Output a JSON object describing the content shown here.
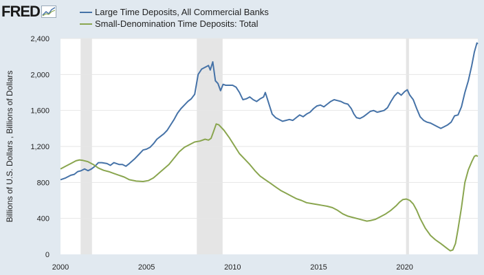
{
  "header": {
    "logo_text": "FRED"
  },
  "colors": {
    "background": "#e1e9f0",
    "plot_background": "#ffffff",
    "gridline": "#e6e6e6",
    "recession": "#e5e5e5",
    "series_large": "#4572a7",
    "series_small": "#89a54e"
  },
  "chart_data": {
    "type": "line",
    "title": "",
    "xlabel": "",
    "ylabel": "Billions of U.S. Dollars , Billions of Dollars",
    "xlim": [
      2000,
      2024.25
    ],
    "ylim": [
      0,
      2400
    ],
    "x_ticks": [
      2000,
      2005,
      2010,
      2015,
      2020
    ],
    "y_ticks": [
      0,
      400,
      800,
      1200,
      1600,
      2000,
      2400
    ],
    "y_tick_labels": [
      "0",
      "400",
      "800",
      "1,200",
      "1,600",
      "2,000",
      "2,400"
    ],
    "grid": true,
    "legend_position": "top-left",
    "recessions": [
      [
        2001.17,
        2001.83
      ],
      [
        2007.92,
        2009.42
      ],
      [
        2020.08,
        2020.25
      ]
    ],
    "series": [
      {
        "name": "Large Time Deposits, All Commercial Banks",
        "color": "#4572a7",
        "points": [
          [
            2000.0,
            830
          ],
          [
            2000.3,
            850
          ],
          [
            2000.6,
            880
          ],
          [
            2000.8,
            890
          ],
          [
            2001.0,
            920
          ],
          [
            2001.2,
            930
          ],
          [
            2001.4,
            950
          ],
          [
            2001.6,
            930
          ],
          [
            2001.8,
            950
          ],
          [
            2002.0,
            980
          ],
          [
            2002.2,
            1020
          ],
          [
            2002.4,
            1020
          ],
          [
            2002.7,
            1010
          ],
          [
            2002.9,
            990
          ],
          [
            2003.1,
            1020
          ],
          [
            2003.4,
            1000
          ],
          [
            2003.6,
            1000
          ],
          [
            2003.8,
            980
          ],
          [
            2004.0,
            1010
          ],
          [
            2004.3,
            1060
          ],
          [
            2004.6,
            1120
          ],
          [
            2004.8,
            1160
          ],
          [
            2005.0,
            1170
          ],
          [
            2005.2,
            1190
          ],
          [
            2005.4,
            1230
          ],
          [
            2005.6,
            1280
          ],
          [
            2005.8,
            1310
          ],
          [
            2006.0,
            1340
          ],
          [
            2006.2,
            1380
          ],
          [
            2006.4,
            1440
          ],
          [
            2006.6,
            1500
          ],
          [
            2006.8,
            1570
          ],
          [
            2007.0,
            1620
          ],
          [
            2007.2,
            1660
          ],
          [
            2007.4,
            1700
          ],
          [
            2007.6,
            1730
          ],
          [
            2007.8,
            1780
          ],
          [
            2008.0,
            2000
          ],
          [
            2008.2,
            2060
          ],
          [
            2008.4,
            2080
          ],
          [
            2008.6,
            2100
          ],
          [
            2008.7,
            2050
          ],
          [
            2008.85,
            2140
          ],
          [
            2009.0,
            1930
          ],
          [
            2009.15,
            1900
          ],
          [
            2009.3,
            1820
          ],
          [
            2009.45,
            1890
          ],
          [
            2009.6,
            1880
          ],
          [
            2009.8,
            1880
          ],
          [
            2010.0,
            1880
          ],
          [
            2010.2,
            1860
          ],
          [
            2010.4,
            1800
          ],
          [
            2010.6,
            1720
          ],
          [
            2010.8,
            1730
          ],
          [
            2011.0,
            1750
          ],
          [
            2011.2,
            1720
          ],
          [
            2011.4,
            1700
          ],
          [
            2011.6,
            1730
          ],
          [
            2011.8,
            1750
          ],
          [
            2011.9,
            1800
          ],
          [
            2012.0,
            1740
          ],
          [
            2012.15,
            1650
          ],
          [
            2012.3,
            1560
          ],
          [
            2012.5,
            1520
          ],
          [
            2012.7,
            1500
          ],
          [
            2012.9,
            1480
          ],
          [
            2013.1,
            1490
          ],
          [
            2013.3,
            1500
          ],
          [
            2013.5,
            1490
          ],
          [
            2013.7,
            1520
          ],
          [
            2013.9,
            1550
          ],
          [
            2014.1,
            1530
          ],
          [
            2014.3,
            1560
          ],
          [
            2014.5,
            1580
          ],
          [
            2014.7,
            1620
          ],
          [
            2014.9,
            1650
          ],
          [
            2015.1,
            1660
          ],
          [
            2015.3,
            1640
          ],
          [
            2015.5,
            1670
          ],
          [
            2015.7,
            1700
          ],
          [
            2015.9,
            1720
          ],
          [
            2016.1,
            1710
          ],
          [
            2016.3,
            1700
          ],
          [
            2016.5,
            1680
          ],
          [
            2016.7,
            1670
          ],
          [
            2016.9,
            1620
          ],
          [
            2017.05,
            1560
          ],
          [
            2017.2,
            1520
          ],
          [
            2017.4,
            1510
          ],
          [
            2017.6,
            1530
          ],
          [
            2017.8,
            1560
          ],
          [
            2018.0,
            1590
          ],
          [
            2018.2,
            1600
          ],
          [
            2018.4,
            1580
          ],
          [
            2018.6,
            1590
          ],
          [
            2018.8,
            1600
          ],
          [
            2019.0,
            1630
          ],
          [
            2019.2,
            1700
          ],
          [
            2019.4,
            1760
          ],
          [
            2019.6,
            1800
          ],
          [
            2019.8,
            1770
          ],
          [
            2020.0,
            1810
          ],
          [
            2020.15,
            1830
          ],
          [
            2020.3,
            1770
          ],
          [
            2020.5,
            1720
          ],
          [
            2020.7,
            1620
          ],
          [
            2020.9,
            1530
          ],
          [
            2021.1,
            1490
          ],
          [
            2021.3,
            1470
          ],
          [
            2021.5,
            1460
          ],
          [
            2021.7,
            1440
          ],
          [
            2021.9,
            1420
          ],
          [
            2022.1,
            1400
          ],
          [
            2022.3,
            1420
          ],
          [
            2022.5,
            1440
          ],
          [
            2022.7,
            1470
          ],
          [
            2022.9,
            1540
          ],
          [
            2023.1,
            1550
          ],
          [
            2023.3,
            1640
          ],
          [
            2023.5,
            1800
          ],
          [
            2023.7,
            1930
          ],
          [
            2023.9,
            2100
          ],
          [
            2024.05,
            2250
          ],
          [
            2024.2,
            2350
          ],
          [
            2024.25,
            2340
          ]
        ]
      },
      {
        "name": "Small-Denomination Time Deposits: Total",
        "color": "#89a54e",
        "points": [
          [
            2000.0,
            950
          ],
          [
            2000.3,
            980
          ],
          [
            2000.6,
            1010
          ],
          [
            2000.9,
            1040
          ],
          [
            2001.1,
            1050
          ],
          [
            2001.3,
            1045
          ],
          [
            2001.6,
            1030
          ],
          [
            2001.9,
            1000
          ],
          [
            2002.2,
            960
          ],
          [
            2002.5,
            935
          ],
          [
            2002.8,
            920
          ],
          [
            2003.1,
            900
          ],
          [
            2003.4,
            880
          ],
          [
            2003.7,
            860
          ],
          [
            2004.0,
            830
          ],
          [
            2004.4,
            815
          ],
          [
            2004.8,
            810
          ],
          [
            2005.1,
            820
          ],
          [
            2005.4,
            850
          ],
          [
            2005.7,
            900
          ],
          [
            2006.0,
            950
          ],
          [
            2006.3,
            1000
          ],
          [
            2006.6,
            1070
          ],
          [
            2006.9,
            1140
          ],
          [
            2007.2,
            1190
          ],
          [
            2007.5,
            1220
          ],
          [
            2007.8,
            1250
          ],
          [
            2008.1,
            1260
          ],
          [
            2008.4,
            1280
          ],
          [
            2008.6,
            1270
          ],
          [
            2008.75,
            1290
          ],
          [
            2008.9,
            1370
          ],
          [
            2009.05,
            1450
          ],
          [
            2009.2,
            1440
          ],
          [
            2009.5,
            1380
          ],
          [
            2009.8,
            1300
          ],
          [
            2010.1,
            1210
          ],
          [
            2010.4,
            1120
          ],
          [
            2010.7,
            1060
          ],
          [
            2011.0,
            1000
          ],
          [
            2011.3,
            930
          ],
          [
            2011.6,
            870
          ],
          [
            2011.9,
            830
          ],
          [
            2012.2,
            790
          ],
          [
            2012.5,
            750
          ],
          [
            2012.8,
            710
          ],
          [
            2013.1,
            680
          ],
          [
            2013.4,
            650
          ],
          [
            2013.7,
            620
          ],
          [
            2014.0,
            600
          ],
          [
            2014.3,
            575
          ],
          [
            2014.6,
            565
          ],
          [
            2014.9,
            555
          ],
          [
            2015.2,
            545
          ],
          [
            2015.5,
            535
          ],
          [
            2015.8,
            520
          ],
          [
            2016.1,
            490
          ],
          [
            2016.4,
            450
          ],
          [
            2016.7,
            425
          ],
          [
            2017.0,
            410
          ],
          [
            2017.3,
            395
          ],
          [
            2017.6,
            380
          ],
          [
            2017.8,
            370
          ],
          [
            2018.0,
            375
          ],
          [
            2018.3,
            390
          ],
          [
            2018.6,
            420
          ],
          [
            2018.9,
            450
          ],
          [
            2019.2,
            490
          ],
          [
            2019.5,
            540
          ],
          [
            2019.7,
            580
          ],
          [
            2019.9,
            610
          ],
          [
            2020.1,
            615
          ],
          [
            2020.3,
            600
          ],
          [
            2020.5,
            560
          ],
          [
            2020.7,
            490
          ],
          [
            2020.9,
            400
          ],
          [
            2021.2,
            290
          ],
          [
            2021.5,
            210
          ],
          [
            2021.8,
            160
          ],
          [
            2022.1,
            120
          ],
          [
            2022.3,
            90
          ],
          [
            2022.5,
            60
          ],
          [
            2022.65,
            40
          ],
          [
            2022.8,
            50
          ],
          [
            2022.95,
            120
          ],
          [
            2023.1,
            280
          ],
          [
            2023.3,
            520
          ],
          [
            2023.5,
            800
          ],
          [
            2023.7,
            940
          ],
          [
            2023.9,
            1030
          ],
          [
            2024.05,
            1090
          ],
          [
            2024.15,
            1100
          ],
          [
            2024.25,
            1090
          ]
        ]
      }
    ]
  }
}
